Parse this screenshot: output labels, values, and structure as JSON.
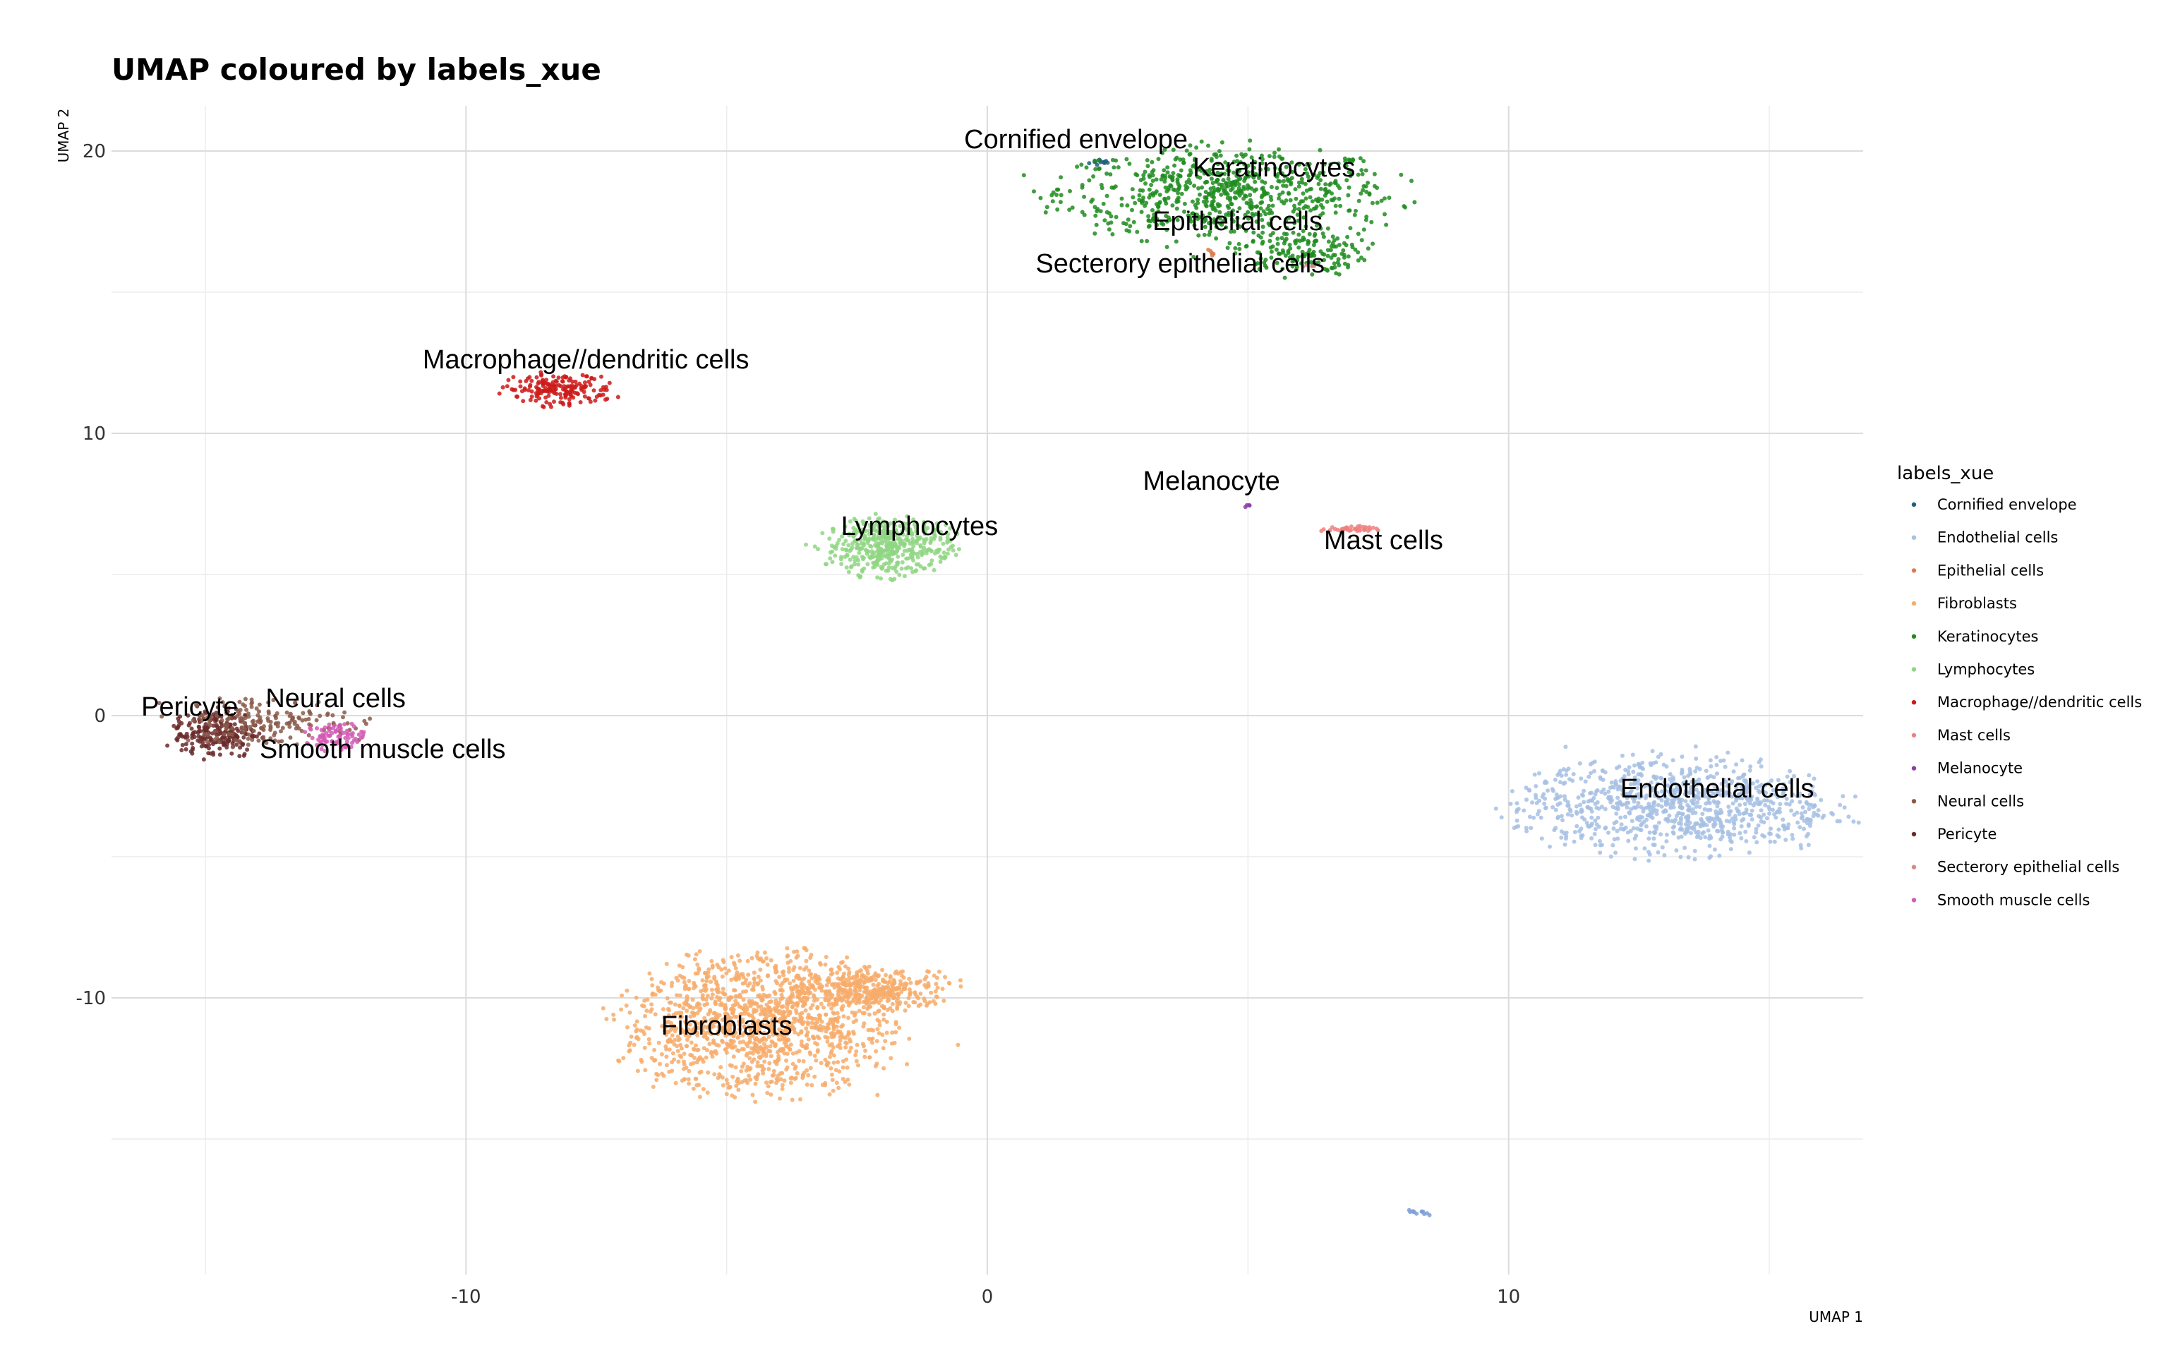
{
  "chart_data": {
    "type": "scatter",
    "title": "UMAP coloured by labels_xue",
    "xlabel": "UMAP 1",
    "ylabel": "UMAP 2",
    "xlim": [
      -16.8,
      16.8
    ],
    "ylim": [
      -19.8,
      21.6
    ],
    "x_ticks": [
      -10,
      0,
      10
    ],
    "y_ticks": [
      -10,
      0,
      10,
      20
    ],
    "grid": true,
    "legend": {
      "title": "labels_xue",
      "placement": "right",
      "entries": [
        "Cornified envelope",
        "Endothelial cells",
        "Epithelial cells",
        "Fibroblasts",
        "Keratinocytes",
        "Lymphocytes",
        "Macrophage//dendritic cells",
        "Mast cells",
        "Melanocyte",
        "Neural cells",
        "Pericyte",
        "Secterory epithelial cells",
        "Smooth muscle cells"
      ]
    },
    "clusters": [
      {
        "name": "Cornified envelope",
        "color": "#1f5f7a",
        "label": "Cornified envelope",
        "label_x": 1.7,
        "label_y": 20.1,
        "cx": 2.2,
        "cy": 19.6,
        "rx": 0.15,
        "ry": 0.08,
        "n": 12
      },
      {
        "name": "Keratinocytes",
        "color": "#1e8c1e",
        "label": "Keratinocytes",
        "label_x": 5.5,
        "label_y": 19.1,
        "cx": 4.6,
        "cy": 18.5,
        "rx": 2.0,
        "ry": 1.0,
        "n": 700
      },
      {
        "name": "Keratinocytes",
        "color": "#1e8c1e",
        "label": "",
        "label_x": 0,
        "label_y": 0,
        "cx": 6.0,
        "cy": 16.4,
        "rx": 0.8,
        "ry": 0.5,
        "n": 150
      },
      {
        "name": "Epithelial cells",
        "color": "#e07b4b",
        "label": "Epithelial cells",
        "label_x": 4.8,
        "label_y": 17.2,
        "cx": 4.3,
        "cy": 16.4,
        "rx": 0.08,
        "ry": 0.08,
        "n": 6
      },
      {
        "name": "Secterory epithelial cells",
        "color": "#d98a8a",
        "label": "Secterory epithelial cells",
        "label_x": 3.7,
        "label_y": 15.7,
        "cx": 6.2,
        "cy": 15.9,
        "rx": 0.08,
        "ry": 0.08,
        "n": 4
      },
      {
        "name": "Macrophage//dendritic cells",
        "color": "#cc1a1a",
        "label": "Macrophage//dendritic cells",
        "label_x": -7.7,
        "label_y": 12.3,
        "cx": -8.2,
        "cy": 11.55,
        "rx": 0.65,
        "ry": 0.35,
        "n": 180
      },
      {
        "name": "Lymphocytes",
        "color": "#8fd682",
        "label": "Lymphocytes",
        "label_x": -1.3,
        "label_y": 6.4,
        "cx": -1.9,
        "cy": 6.0,
        "rx": 0.75,
        "ry": 0.65,
        "n": 450
      },
      {
        "name": "Melanocyte",
        "color": "#8b3fa6",
        "label": "Melanocyte",
        "label_x": 4.3,
        "label_y": 8.0,
        "cx": 4.95,
        "cy": 7.45,
        "rx": 0.05,
        "ry": 0.05,
        "n": 4
      },
      {
        "name": "Mast cells",
        "color": "#f08080",
        "label": "Mast cells",
        "label_x": 7.6,
        "label_y": 5.9,
        "cx": 6.95,
        "cy": 6.6,
        "rx": 0.35,
        "ry": 0.07,
        "n": 40
      },
      {
        "name": "Pericyte",
        "color": "#6b2a2a",
        "label": "Pericyte",
        "label_x": -15.3,
        "label_y": 0.0,
        "cx": -14.8,
        "cy": -0.6,
        "rx": 0.5,
        "ry": 0.55,
        "n": 220
      },
      {
        "name": "Neural cells",
        "color": "#8a5a4a",
        "label": "Neural cells",
        "label_x": -12.5,
        "label_y": 0.3,
        "cx": -13.8,
        "cy": -0.2,
        "rx": 1.1,
        "ry": 0.55,
        "n": 180
      },
      {
        "name": "Smooth muscle cells",
        "color": "#d45ab5",
        "label": "Smooth muscle cells",
        "label_x": -11.6,
        "label_y": -1.5,
        "cx": -12.5,
        "cy": -0.75,
        "rx": 0.35,
        "ry": 0.3,
        "n": 80
      },
      {
        "name": "Endothelial cells",
        "color": "#a6bfe3",
        "label": "Endothelial cells",
        "label_x": 14.0,
        "label_y": -2.9,
        "cx": 13.2,
        "cy": -3.2,
        "rx": 1.9,
        "ry": 1.05,
        "n": 900
      },
      {
        "name": "Endothelial cells",
        "color": "#7f9fd6",
        "label": "",
        "label_x": 0,
        "label_y": 0,
        "cx": 8.3,
        "cy": -17.6,
        "rx": 0.15,
        "ry": 0.08,
        "n": 12
      },
      {
        "name": "Fibroblasts",
        "color": "#f7ac6b",
        "label": "Fibroblasts",
        "label_x": -5.0,
        "label_y": -11.3,
        "cx": -4.4,
        "cy": -10.9,
        "rx": 1.6,
        "ry": 1.5,
        "n": 1300
      },
      {
        "name": "Fibroblasts",
        "color": "#f7ac6b",
        "label": "",
        "label_x": 0,
        "label_y": 0,
        "cx": -2.2,
        "cy": -9.7,
        "rx": 1.0,
        "ry": 0.45,
        "n": 350
      }
    ],
    "legend_colors": {
      "Cornified envelope": "#1f5f7a",
      "Endothelial cells": "#a6bfe3",
      "Epithelial cells": "#e07b4b",
      "Fibroblasts": "#f7ac6b",
      "Keratinocytes": "#1e8c1e",
      "Lymphocytes": "#8fd682",
      "Macrophage//dendritic cells": "#cc1a1a",
      "Mast cells": "#f08080",
      "Melanocyte": "#8b3fa6",
      "Neural cells": "#8a5a4a",
      "Pericyte": "#6b2a2a",
      "Secterory epithelial cells": "#d98a8a",
      "Smooth muscle cells": "#d45ab5"
    }
  }
}
